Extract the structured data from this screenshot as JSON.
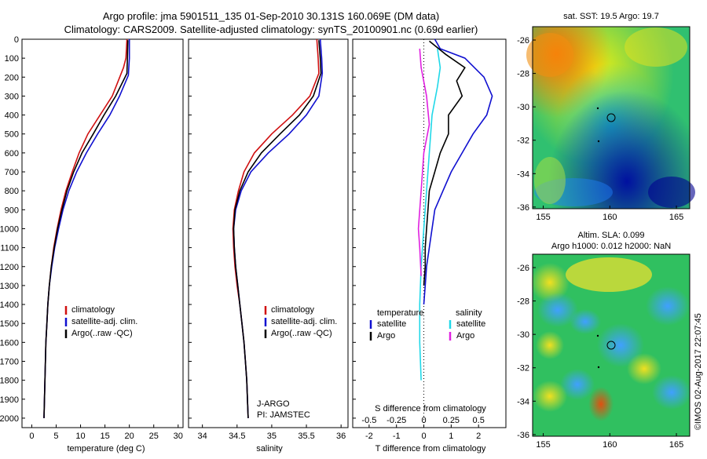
{
  "header": {
    "line1": "Argo profile: jma 5901511_135 01-Sep-2010 30.131S 160.069E (DM data)",
    "line2": "Climatology: CARS2009. Satellite-adjusted climatology: synTS_20100901.nc (0.69d earlier)"
  },
  "colors": {
    "climatology": "#d01010",
    "satellite": "#1010d0",
    "argo": "#000000",
    "sal_satellite": "#20d8e8",
    "sal_argo": "#e020e0"
  },
  "chart_data": [
    {
      "id": "temperature",
      "type": "line",
      "xlabel": "temperature (deg C)",
      "ylabel": "",
      "xlim": [
        -2,
        31
      ],
      "ylim": [
        2050,
        0
      ],
      "xticks": [
        0,
        5,
        10,
        15,
        20,
        25,
        30
      ],
      "yticks": [
        0,
        100,
        200,
        300,
        400,
        500,
        600,
        700,
        800,
        900,
        1000,
        1100,
        1200,
        1300,
        1400,
        1500,
        1600,
        1700,
        1800,
        1900,
        2000
      ],
      "legend": [
        "climatology",
        "satellite-adj. clim.",
        "Argo(..raw -QC)"
      ],
      "series": [
        {
          "name": "climatology",
          "color": "#d01010",
          "points": [
            [
              19.5,
              0
            ],
            [
              19.3,
              100
            ],
            [
              18.8,
              150
            ],
            [
              16.5,
              300
            ],
            [
              14.0,
              400
            ],
            [
              11.5,
              500
            ],
            [
              9.7,
              600
            ],
            [
              8.3,
              700
            ],
            [
              7.0,
              800
            ],
            [
              6.0,
              900
            ],
            [
              5.2,
              1000
            ],
            [
              4.5,
              1100
            ],
            [
              4.0,
              1200
            ],
            [
              3.6,
              1300
            ],
            [
              3.3,
              1400
            ],
            [
              3.1,
              1500
            ],
            [
              2.9,
              1600
            ],
            [
              2.8,
              1700
            ],
            [
              2.7,
              1800
            ],
            [
              2.6,
              1900
            ],
            [
              2.5,
              2000
            ]
          ]
        },
        {
          "name": "satellite-adj. clim.",
          "color": "#1010d0",
          "points": [
            [
              20.0,
              0
            ],
            [
              20.0,
              100
            ],
            [
              19.8,
              190
            ],
            [
              18.0,
              300
            ],
            [
              16.0,
              400
            ],
            [
              13.5,
              500
            ],
            [
              11.2,
              600
            ],
            [
              9.2,
              700
            ],
            [
              7.6,
              800
            ],
            [
              6.4,
              900
            ],
            [
              5.5,
              1000
            ],
            [
              4.7,
              1100
            ],
            [
              4.1,
              1200
            ],
            [
              3.6,
              1300
            ],
            [
              3.3,
              1400
            ],
            [
              3.1,
              1500
            ],
            [
              2.9,
              1600
            ],
            [
              2.8,
              1700
            ],
            [
              2.7,
              1800
            ],
            [
              2.6,
              1900
            ],
            [
              2.5,
              2000
            ]
          ]
        },
        {
          "name": "Argo(..raw -QC)",
          "color": "#000000",
          "points": [
            [
              19.7,
              5
            ],
            [
              19.6,
              100
            ],
            [
              19.5,
              180
            ],
            [
              17.2,
              300
            ],
            [
              14.8,
              400
            ],
            [
              12.6,
              500
            ],
            [
              10.3,
              600
            ],
            [
              8.6,
              700
            ],
            [
              7.2,
              800
            ],
            [
              6.2,
              900
            ],
            [
              5.3,
              1000
            ],
            [
              4.6,
              1100
            ],
            [
              4.0,
              1200
            ],
            [
              3.6,
              1300
            ],
            [
              3.3,
              1400
            ],
            [
              3.1,
              1500
            ],
            [
              2.9,
              1600
            ],
            [
              2.8,
              1700
            ],
            [
              2.7,
              1800
            ],
            [
              2.6,
              1900
            ],
            [
              2.5,
              2000
            ]
          ]
        }
      ]
    },
    {
      "id": "salinity",
      "type": "line",
      "xlabel": "salinity",
      "xlim": [
        33.8,
        36.1
      ],
      "ylim": [
        2050,
        0
      ],
      "xticks": [
        34,
        34.5,
        35,
        35.5,
        36
      ],
      "legend": [
        "climatology",
        "satellite-adj. clim.",
        "Argo(..raw -QC)"
      ],
      "annotation": [
        "J-ARGO",
        "PI: JAMSTEC"
      ],
      "series": [
        {
          "name": "climatology",
          "color": "#d01010",
          "points": [
            [
              35.65,
              0
            ],
            [
              35.67,
              100
            ],
            [
              35.68,
              180
            ],
            [
              35.55,
              300
            ],
            [
              35.3,
              400
            ],
            [
              35.0,
              500
            ],
            [
              34.75,
              600
            ],
            [
              34.6,
              700
            ],
            [
              34.52,
              800
            ],
            [
              34.46,
              900
            ],
            [
              34.44,
              1000
            ],
            [
              34.45,
              1100
            ],
            [
              34.47,
              1200
            ],
            [
              34.5,
              1300
            ],
            [
              34.54,
              1400
            ],
            [
              34.57,
              1500
            ],
            [
              34.6,
              1600
            ],
            [
              34.62,
              1700
            ],
            [
              34.64,
              1800
            ],
            [
              34.65,
              1900
            ],
            [
              34.66,
              2000
            ]
          ]
        },
        {
          "name": "satellite-adj. clim.",
          "color": "#1010d0",
          "points": [
            [
              35.7,
              0
            ],
            [
              35.72,
              100
            ],
            [
              35.73,
              180
            ],
            [
              35.68,
              300
            ],
            [
              35.5,
              400
            ],
            [
              35.25,
              500
            ],
            [
              34.95,
              600
            ],
            [
              34.7,
              700
            ],
            [
              34.56,
              800
            ],
            [
              34.48,
              900
            ],
            [
              34.45,
              1000
            ],
            [
              34.46,
              1100
            ],
            [
              34.48,
              1200
            ],
            [
              34.51,
              1300
            ],
            [
              34.54,
              1400
            ],
            [
              34.57,
              1500
            ],
            [
              34.6,
              1600
            ],
            [
              34.62,
              1700
            ],
            [
              34.64,
              1800
            ],
            [
              34.65,
              1900
            ],
            [
              34.66,
              2000
            ]
          ]
        },
        {
          "name": "Argo(..raw -QC)",
          "color": "#000000",
          "points": [
            [
              35.68,
              5
            ],
            [
              35.7,
              100
            ],
            [
              35.71,
              180
            ],
            [
              35.6,
              300
            ],
            [
              35.4,
              400
            ],
            [
              35.12,
              500
            ],
            [
              34.85,
              600
            ],
            [
              34.66,
              700
            ],
            [
              34.54,
              800
            ],
            [
              34.47,
              900
            ],
            [
              34.45,
              1000
            ],
            [
              34.46,
              1100
            ],
            [
              34.48,
              1200
            ],
            [
              34.51,
              1300
            ],
            [
              34.54,
              1400
            ],
            [
              34.57,
              1500
            ],
            [
              34.6,
              1600
            ],
            [
              34.62,
              1700
            ],
            [
              34.64,
              1800
            ],
            [
              34.65,
              1900
            ],
            [
              34.66,
              2000
            ]
          ]
        }
      ]
    },
    {
      "id": "difference",
      "type": "line",
      "xlabel_top": "S difference from climatology",
      "xlabel": "T difference from climatology",
      "xlim": [
        -2.6,
        3.0
      ],
      "ylim": [
        2050,
        0
      ],
      "xticks": [
        -2,
        -1,
        0,
        1,
        2
      ],
      "xticks_top": [
        "-0.5",
        "-0.25",
        "0",
        "0.25",
        "0.5"
      ],
      "legend_groups": [
        {
          "title": "temperature",
          "items": [
            "satellite",
            "Argo"
          ]
        },
        {
          "title": "salinity",
          "items": [
            "satellite",
            "Argo"
          ]
        }
      ],
      "series": [
        {
          "name": "temperature satellite",
          "color": "#1010d0",
          "points": [
            [
              0.4,
              0
            ],
            [
              0.6,
              50
            ],
            [
              1.5,
              100
            ],
            [
              2.2,
              200
            ],
            [
              2.5,
              300
            ],
            [
              2.3,
              400
            ],
            [
              1.8,
              500
            ],
            [
              1.4,
              600
            ],
            [
              1.0,
              700
            ],
            [
              0.7,
              800
            ],
            [
              0.4,
              900
            ],
            [
              0.3,
              1000
            ],
            [
              0.2,
              1100
            ],
            [
              0.1,
              1200
            ],
            [
              0.05,
              1300
            ],
            [
              0,
              1400
            ]
          ]
        },
        {
          "name": "temperature Argo",
          "color": "#000000",
          "points": [
            [
              0.2,
              10
            ],
            [
              0.8,
              80
            ],
            [
              1.5,
              150
            ],
            [
              1.2,
              220
            ],
            [
              1.4,
              300
            ],
            [
              0.9,
              400
            ],
            [
              0.9,
              500
            ],
            [
              0.6,
              600
            ],
            [
              0.4,
              700
            ],
            [
              0.2,
              800
            ],
            [
              0.15,
              900
            ],
            [
              0.1,
              1000
            ],
            [
              0.05,
              1100
            ],
            [
              0.05,
              1200
            ],
            [
              0,
              1300
            ]
          ]
        },
        {
          "name": "salinity satellite",
          "color": "#20d8e8",
          "points": [
            [
              0.5,
              50
            ],
            [
              0.6,
              150
            ],
            [
              0.5,
              250
            ],
            [
              0.3,
              400
            ],
            [
              0.2,
              600
            ],
            [
              0.1,
              800
            ],
            [
              0,
              1000
            ],
            [
              -0.1,
              1200
            ],
            [
              -0.15,
              1400
            ],
            [
              -0.15,
              1600
            ],
            [
              -0.1,
              1800
            ]
          ]
        },
        {
          "name": "salinity Argo",
          "color": "#e020e0",
          "points": [
            [
              -0.15,
              50
            ],
            [
              -0.1,
              150
            ],
            [
              0.1,
              300
            ],
            [
              0.2,
              450
            ],
            [
              0.0,
              600
            ],
            [
              -0.1,
              800
            ],
            [
              -0.2,
              1000
            ],
            [
              -0.15,
              1100
            ],
            [
              -0.1,
              1250
            ]
          ]
        }
      ]
    }
  ],
  "maps": [
    {
      "id": "sst-map",
      "title": "sat. SST: 19.5 Argo: 19.7",
      "xticks": [
        "155",
        "160",
        "165"
      ],
      "yticks": [
        "-26",
        "-28",
        "-30",
        "-32",
        "-34",
        "-36"
      ]
    },
    {
      "id": "sla-map",
      "title1": "Altim. SLA: 0.099",
      "title2": "Argo h1000: 0.012 h2000: NaN",
      "xticks": [
        "155",
        "160",
        "165"
      ],
      "yticks": [
        "-26",
        "-28",
        "-30",
        "-32",
        "-34",
        "-36"
      ]
    }
  ],
  "footer": {
    "stamp": "©IMOS 02-Aug-2017 22:07:45"
  }
}
